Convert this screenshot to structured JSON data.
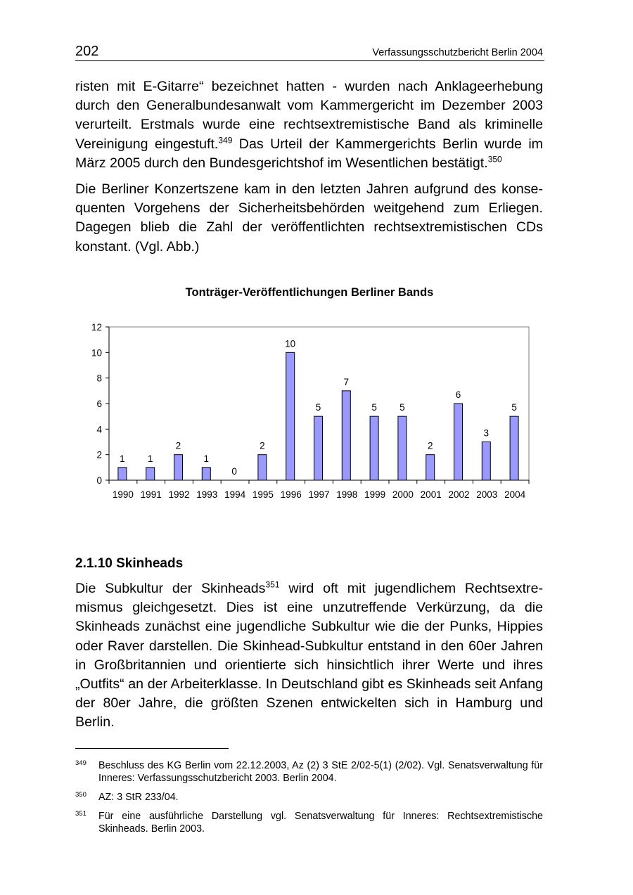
{
  "header": {
    "page_number": "202",
    "running_title": "Verfassungsschutzbericht Berlin 2004"
  },
  "paragraphs": [
    {
      "segments": [
        {
          "text": "risten mit E-Gitarre“ bezeichnet hatten - wurden nach Anklageerhebung durch den Generalbundesanwalt vom Kammergericht im Dezember 2003 verurteilt. Erstmals wurde eine rechtsextremistische Band als kriminelle Vereinigung eingestuft."
        },
        {
          "sup": "349"
        },
        {
          "text": " Das Urteil der Kammergerichts Berlin wurde im März 2005 durch den Bundesgerichtshof im Wesentlichen bestätigt."
        },
        {
          "sup": "350"
        }
      ]
    },
    {
      "segments": [
        {
          "text": "Die Berliner Konzertszene kam in den letzten Jahren aufgrund des konse­quenten Vorgehens der Sicherheitsbehörden weitgehend zum Erliegen. Dagegen blieb die Zahl der veröffentlichten rechtsextremistischen CDs konstant. (Vgl. Abb.)"
        }
      ]
    }
  ],
  "chart_data": {
    "type": "bar",
    "title": "Tonträger-Veröffentlichungen Berliner Bands",
    "categories": [
      "1990",
      "1991",
      "1992",
      "1993",
      "1994",
      "1995",
      "1996",
      "1997",
      "1998",
      "1999",
      "2000",
      "2001",
      "2002",
      "2003",
      "2004"
    ],
    "values": [
      1,
      1,
      2,
      1,
      0,
      2,
      10,
      5,
      7,
      5,
      5,
      2,
      6,
      3,
      5
    ],
    "ylim": [
      0,
      12
    ],
    "yticks": [
      0,
      2,
      4,
      6,
      8,
      10,
      12
    ],
    "xlabel": "",
    "ylabel": "",
    "grid": false,
    "data_labels": true,
    "bar_color": "#9999ff",
    "legend": "none"
  },
  "section": {
    "heading": "2.1.10  Skinheads"
  },
  "paragraph3": {
    "segments": [
      {
        "text": "Die Subkultur der Skinheads"
      },
      {
        "sup": "351"
      },
      {
        "text": " wird oft mit jugendlichem Rechtsextre­mismus gleichgesetzt. Dies ist eine unzutreffende Verkürzung, da die Skinheads zunächst eine jugendliche Subkultur wie die der Punks, Hippies oder Raver darstellen. Die Skinhead-Subkultur entstand in den 60er Jahren in Großbritannien und orientierte sich hinsichtlich ihrer Werte und ihres „Outfits“ an der Arbeiterklasse. In Deutschland gibt es Skinheads seit Anfang der 80er Jahre, die größten Szenen entwickelten sich in Hamburg und Berlin."
      }
    ]
  },
  "footnotes": [
    {
      "number": "349",
      "text": "Beschluss des KG Berlin vom 22.12.2003, Az (2) 3 StE 2/02-5(1) (2/02). Vgl. Senatsver­waltung für Inneres: Verfassungsschutzbericht 2003. Berlin 2004."
    },
    {
      "number": "350",
      "text": "AZ: 3 StR 233/04."
    },
    {
      "number": "351",
      "text": "Für eine ausführliche Darstellung vgl. Senatsverwaltung für Inneres: Rechtsextremistische Skinheads. Berlin 2003."
    }
  ]
}
